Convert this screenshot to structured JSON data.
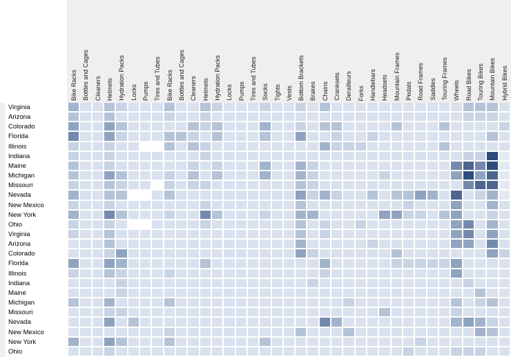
{
  "page": {
    "background": "#ffffff",
    "header_background": "#efefef",
    "gridline_color": "#ffffff",
    "label_text_color": "#000000"
  },
  "chart_data": {
    "type": "heatmap",
    "title": "",
    "xlabel": "",
    "ylabel": "",
    "legend_position": "none",
    "grid": "white gridlines between cells",
    "columns": [
      "Bike Racks",
      "Bottles and Cages",
      "Cleaners",
      "Helmets",
      "Hydration Packs",
      "Locks",
      "Pumps",
      "Tires and Tubes",
      "Bike Racks",
      "Bottles and Cages",
      "Cleaners",
      "Helmets",
      "Hydration Packs",
      "Locks",
      "Pumps",
      "Tires and Tubes",
      "Socks",
      "Tights",
      "Vests",
      "Bottom Brackets",
      "Brakes",
      "Chains",
      "Cranksets",
      "Derailleurs",
      "Forks",
      "Handlebars",
      "Headsets",
      "Mountain Frames",
      "Pedals",
      "Road Frames",
      "Saddles",
      "Touring Frames",
      "Wheels",
      "Road Bikes",
      "Touring Bikes",
      "Mountain Bikes",
      "Hybrid Bikes"
    ],
    "rows": [
      "Virginia",
      "Arizona",
      "Colorado",
      "Florida",
      "Illinois",
      "Indiana",
      "Maine",
      "Michigan",
      "Missouri",
      "Nevada",
      "New Mexico",
      "New York",
      "Ohio",
      "Virginia",
      "Arizona",
      "Colorado",
      "Florida",
      "Illinois",
      "Indiana",
      "Maine",
      "Michigan",
      "Missouri",
      "Nevada",
      "New Mexico",
      "New York",
      "Ohio"
    ],
    "value_scale_note": "0 = lowest (white) through 9 = highest (dark navy)",
    "color_scale": {
      "0": "#ffffff",
      "1": "#e4eaf3",
      "2": "#d9e1ee",
      "3": "#c8d3e3",
      "4": "#b5c3d7",
      "5": "#a2b3cc",
      "6": "#8fa3c1",
      "7": "#7489ae",
      "8": "#4d6691",
      "9": "#2e4c7c"
    },
    "values": [
      [
        5,
        2,
        2,
        4,
        3,
        2,
        2,
        2,
        4,
        2,
        2,
        4,
        3,
        2,
        2,
        2,
        3,
        2,
        2,
        3,
        2,
        4,
        2,
        2,
        2,
        2,
        2,
        2,
        2,
        2,
        2,
        2,
        2,
        4,
        4,
        4,
        2
      ],
      [
        4,
        2,
        2,
        4,
        2,
        2,
        2,
        2,
        3,
        2,
        2,
        3,
        2,
        2,
        2,
        2,
        2,
        2,
        2,
        2,
        2,
        2,
        2,
        2,
        2,
        2,
        2,
        2,
        2,
        2,
        2,
        2,
        2,
        3,
        3,
        3,
        2
      ],
      [
        6,
        2,
        2,
        6,
        4,
        2,
        2,
        2,
        2,
        2,
        4,
        3,
        4,
        2,
        2,
        2,
        5,
        2,
        2,
        3,
        2,
        4,
        4,
        2,
        2,
        2,
        2,
        4,
        2,
        2,
        2,
        4,
        2,
        2,
        2,
        2,
        3
      ],
      [
        7,
        2,
        2,
        6,
        3,
        2,
        2,
        2,
        4,
        4,
        3,
        2,
        4,
        2,
        2,
        2,
        4,
        2,
        2,
        6,
        2,
        2,
        3,
        2,
        2,
        3,
        2,
        2,
        2,
        2,
        2,
        2,
        2,
        2,
        2,
        4,
        2
      ],
      [
        3,
        2,
        2,
        3,
        2,
        2,
        0,
        0,
        4,
        2,
        4,
        3,
        2,
        2,
        2,
        2,
        2,
        2,
        2,
        2,
        2,
        5,
        3,
        3,
        3,
        2,
        2,
        2,
        2,
        2,
        2,
        4,
        2,
        2,
        2,
        2,
        2
      ],
      [
        3,
        2,
        2,
        3,
        2,
        2,
        2,
        2,
        2,
        2,
        2,
        3,
        2,
        2,
        2,
        2,
        2,
        2,
        2,
        2,
        2,
        2,
        2,
        2,
        2,
        2,
        2,
        2,
        2,
        2,
        2,
        2,
        2,
        3,
        3,
        9,
        1
      ],
      [
        4,
        2,
        2,
        3,
        2,
        2,
        2,
        2,
        2,
        2,
        3,
        2,
        3,
        2,
        2,
        2,
        5,
        2,
        2,
        5,
        3,
        2,
        2,
        2,
        2,
        2,
        2,
        2,
        2,
        2,
        2,
        2,
        7,
        8,
        7,
        9,
        1
      ],
      [
        4,
        2,
        2,
        6,
        4,
        2,
        2,
        2,
        3,
        2,
        4,
        2,
        4,
        2,
        2,
        2,
        5,
        2,
        2,
        5,
        3,
        2,
        2,
        2,
        2,
        2,
        3,
        2,
        2,
        2,
        2,
        2,
        6,
        9,
        6,
        8,
        1
      ],
      [
        3,
        2,
        2,
        4,
        3,
        2,
        2,
        0,
        3,
        2,
        3,
        3,
        2,
        2,
        2,
        2,
        2,
        2,
        2,
        4,
        3,
        2,
        2,
        2,
        2,
        2,
        2,
        2,
        2,
        2,
        2,
        2,
        2,
        7,
        8,
        8,
        1
      ],
      [
        5,
        2,
        2,
        4,
        4,
        0,
        0,
        2,
        4,
        2,
        2,
        2,
        2,
        2,
        2,
        2,
        2,
        2,
        2,
        6,
        3,
        5,
        3,
        2,
        2,
        4,
        2,
        4,
        4,
        6,
        5,
        2,
        8,
        2,
        3,
        5,
        1
      ],
      [
        3,
        2,
        2,
        3,
        2,
        2,
        2,
        2,
        2,
        2,
        2,
        3,
        2,
        2,
        2,
        2,
        2,
        2,
        2,
        4,
        2,
        2,
        2,
        2,
        2,
        2,
        2,
        2,
        3,
        2,
        2,
        2,
        6,
        2,
        2,
        5,
        2
      ],
      [
        5,
        2,
        2,
        7,
        4,
        2,
        2,
        2,
        3,
        2,
        2,
        7,
        4,
        2,
        2,
        2,
        3,
        2,
        2,
        5,
        5,
        2,
        2,
        2,
        2,
        2,
        6,
        6,
        3,
        3,
        2,
        4,
        6,
        2,
        2,
        3,
        2
      ],
      [
        3,
        2,
        2,
        3,
        2,
        0,
        0,
        2,
        2,
        2,
        2,
        3,
        2,
        2,
        2,
        2,
        2,
        2,
        2,
        4,
        2,
        3,
        2,
        2,
        3,
        2,
        2,
        2,
        2,
        2,
        2,
        2,
        6,
        7,
        2,
        5,
        2
      ],
      [
        3,
        2,
        2,
        4,
        2,
        2,
        2,
        2,
        2,
        2,
        2,
        2,
        2,
        2,
        2,
        2,
        2,
        2,
        2,
        4,
        2,
        3,
        2,
        2,
        2,
        2,
        2,
        2,
        2,
        2,
        2,
        2,
        6,
        7,
        2,
        6,
        2
      ],
      [
        2,
        2,
        2,
        4,
        2,
        2,
        2,
        2,
        2,
        2,
        2,
        2,
        2,
        2,
        2,
        2,
        2,
        2,
        2,
        5,
        2,
        2,
        2,
        2,
        2,
        3,
        2,
        2,
        2,
        2,
        2,
        2,
        6,
        6,
        2,
        7,
        2
      ],
      [
        2,
        2,
        2,
        3,
        6,
        2,
        2,
        2,
        2,
        2,
        2,
        2,
        2,
        2,
        2,
        2,
        2,
        2,
        2,
        6,
        3,
        2,
        2,
        2,
        2,
        2,
        2,
        4,
        2,
        2,
        2,
        2,
        2,
        2,
        2,
        6,
        3
      ],
      [
        6,
        2,
        2,
        6,
        5,
        2,
        2,
        2,
        2,
        2,
        2,
        4,
        2,
        2,
        2,
        2,
        2,
        2,
        2,
        2,
        2,
        5,
        2,
        2,
        2,
        2,
        2,
        3,
        3,
        3,
        3,
        3,
        6,
        2,
        2,
        2,
        2
      ],
      [
        3,
        2,
        2,
        4,
        3,
        2,
        2,
        2,
        3,
        2,
        2,
        2,
        2,
        2,
        2,
        2,
        2,
        2,
        2,
        2,
        2,
        3,
        2,
        2,
        2,
        2,
        2,
        2,
        2,
        2,
        2,
        2,
        6,
        2,
        2,
        2,
        2
      ],
      [
        2,
        2,
        2,
        2,
        3,
        2,
        2,
        2,
        2,
        2,
        2,
        2,
        2,
        2,
        2,
        2,
        2,
        2,
        2,
        2,
        3,
        2,
        2,
        2,
        2,
        2,
        2,
        2,
        2,
        2,
        2,
        2,
        2,
        3,
        2,
        2,
        2
      ],
      [
        2,
        2,
        2,
        2,
        3,
        2,
        2,
        2,
        2,
        2,
        2,
        2,
        2,
        2,
        2,
        2,
        2,
        2,
        2,
        2,
        2,
        2,
        2,
        2,
        2,
        2,
        2,
        2,
        2,
        2,
        2,
        2,
        2,
        2,
        4,
        2,
        2
      ],
      [
        4,
        2,
        2,
        5,
        2,
        2,
        2,
        2,
        4,
        2,
        2,
        2,
        2,
        2,
        2,
        2,
        2,
        2,
        2,
        2,
        2,
        2,
        2,
        3,
        2,
        2,
        2,
        2,
        2,
        2,
        2,
        2,
        4,
        2,
        3,
        4,
        2
      ],
      [
        2,
        2,
        2,
        3,
        3,
        2,
        2,
        2,
        2,
        2,
        2,
        2,
        2,
        2,
        2,
        2,
        2,
        2,
        2,
        2,
        2,
        2,
        2,
        2,
        2,
        2,
        4,
        2,
        2,
        2,
        2,
        2,
        3,
        2,
        2,
        2,
        2
      ],
      [
        2,
        2,
        2,
        6,
        2,
        4,
        2,
        2,
        2,
        2,
        2,
        2,
        2,
        2,
        2,
        2,
        2,
        2,
        2,
        2,
        2,
        7,
        5,
        2,
        2,
        2,
        2,
        2,
        2,
        2,
        2,
        2,
        5,
        6,
        5,
        3,
        2
      ],
      [
        2,
        2,
        2,
        2,
        2,
        2,
        2,
        2,
        3,
        2,
        2,
        2,
        2,
        2,
        2,
        2,
        2,
        2,
        2,
        4,
        2,
        2,
        2,
        4,
        2,
        2,
        2,
        2,
        2,
        2,
        2,
        2,
        2,
        2,
        5,
        4,
        2
      ],
      [
        5,
        2,
        2,
        6,
        4,
        2,
        2,
        2,
        4,
        2,
        2,
        2,
        2,
        2,
        2,
        2,
        4,
        2,
        2,
        2,
        2,
        2,
        2,
        2,
        2,
        2,
        2,
        2,
        2,
        3,
        2,
        2,
        2,
        2,
        2,
        2,
        2
      ],
      [
        2,
        2,
        2,
        3,
        2,
        2,
        2,
        2,
        2,
        2,
        2,
        2,
        2,
        2,
        2,
        2,
        2,
        2,
        2,
        2,
        2,
        2,
        2,
        2,
        2,
        2,
        2,
        2,
        3,
        2,
        2,
        2,
        3,
        3,
        3,
        2,
        2
      ]
    ]
  }
}
